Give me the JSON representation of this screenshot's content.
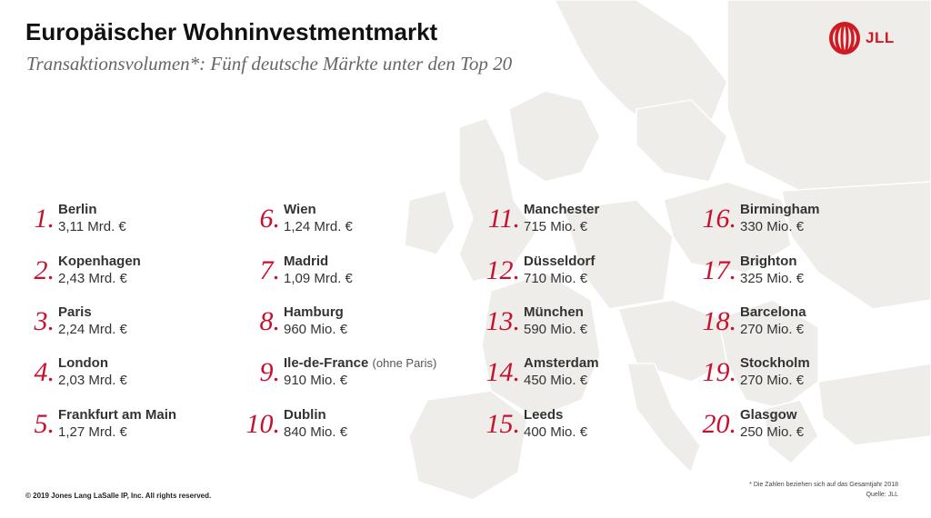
{
  "header": {
    "title": "Europäischer Wohninvestmentmarkt",
    "subtitle": "Transaktionsvolumen*: Fünf deutsche Märkte unter den Top 20"
  },
  "logo": {
    "text": "JLL",
    "icon": "jll-logo-icon",
    "color": "#d01a23"
  },
  "accent_color": "#c8102e",
  "ranking": [
    {
      "rank": "1.",
      "city": "Berlin",
      "note": "",
      "value": "3,11 Mrd. €"
    },
    {
      "rank": "2.",
      "city": "Kopenhagen",
      "note": "",
      "value": "2,43 Mrd. €"
    },
    {
      "rank": "3.",
      "city": "Paris",
      "note": "",
      "value": "2,24 Mrd. €"
    },
    {
      "rank": "4.",
      "city": "London",
      "note": "",
      "value": "2,03 Mrd. €"
    },
    {
      "rank": "5.",
      "city": "Frankfurt am Main",
      "note": "",
      "value": "1,27 Mrd. €"
    },
    {
      "rank": "6.",
      "city": "Wien",
      "note": "",
      "value": "1,24 Mrd. €"
    },
    {
      "rank": "7.",
      "city": "Madrid",
      "note": "",
      "value": "1,09 Mrd. €"
    },
    {
      "rank": "8.",
      "city": "Hamburg",
      "note": "",
      "value": "960 Mio. €"
    },
    {
      "rank": "9.",
      "city": "Ile-de-France",
      "note": "(ohne Paris)",
      "value": "910 Mio. €"
    },
    {
      "rank": "10.",
      "city": "Dublin",
      "note": "",
      "value": "840 Mio. €"
    },
    {
      "rank": "11.",
      "city": "Manchester",
      "note": "",
      "value": "715 Mio. €"
    },
    {
      "rank": "12.",
      "city": "Düsseldorf",
      "note": "",
      "value": "710 Mio. €"
    },
    {
      "rank": "13.",
      "city": "München",
      "note": "",
      "value": "590 Mio. €"
    },
    {
      "rank": "14.",
      "city": "Amsterdam",
      "note": "",
      "value": "450 Mio. €"
    },
    {
      "rank": "15.",
      "city": "Leeds",
      "note": "",
      "value": "400 Mio. €"
    },
    {
      "rank": "16.",
      "city": "Birmingham",
      "note": "",
      "value": "330 Mio. €"
    },
    {
      "rank": "17.",
      "city": "Brighton",
      "note": "",
      "value": "325 Mio. €"
    },
    {
      "rank": "18.",
      "city": "Barcelona",
      "note": "",
      "value": "270 Mio. €"
    },
    {
      "rank": "19.",
      "city": "Stockholm",
      "note": "",
      "value": "270 Mio. €"
    },
    {
      "rank": "20.",
      "city": "Glasgow",
      "note": "",
      "value": "250 Mio. €"
    }
  ],
  "footer": {
    "copyright": "© 2019 Jones Lang LaSalle IP, Inc. All rights reserved.",
    "footnote": "* Die Zahlen beziehen sich auf das Gesamtjahr 2018",
    "source": "Quelle: JLL"
  }
}
